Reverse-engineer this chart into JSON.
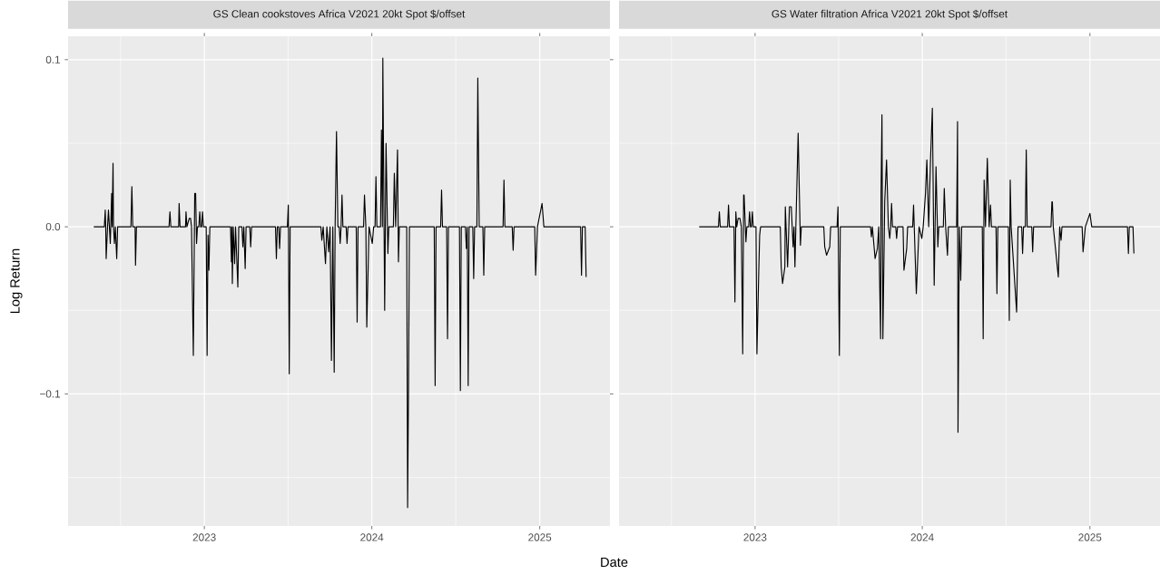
{
  "chart_data": [
    {
      "type": "line",
      "title": "GS Clean cookstoves Africa V2021 20kt Spot $/offset",
      "xlabel": "Date",
      "ylabel": "Log Return",
      "color": "#000000",
      "grid": true,
      "xlim": [
        "2022-03-10",
        "2025-06-03"
      ],
      "ylim": [
        -0.179,
        0.114
      ],
      "xticks": [
        "2023",
        "2024",
        "2025"
      ],
      "yticks": [
        {
          "value": -0.1,
          "label": "−0.1"
        },
        {
          "value": 0,
          "label": "0.0"
        },
        0.1
      ],
      "x": [
        "2022-05-05",
        "2022-05-28",
        "2022-05-30",
        "2022-05-31",
        "2022-06-01",
        "2022-06-04",
        "2022-06-06",
        "2022-06-08",
        "2022-06-10",
        "2022-06-11",
        "2022-06-13",
        "2022-06-14",
        "2022-06-16",
        "2022-06-17",
        "2022-06-19",
        "2022-06-21",
        "2022-06-24",
        "2022-06-26",
        "2022-07-25",
        "2022-07-27",
        "2022-07-29",
        "2022-08-03",
        "2022-08-04",
        "2022-08-06",
        "2022-10-16",
        "2022-10-18",
        "2022-10-20",
        "2022-11-06",
        "2022-11-07",
        "2022-11-09",
        "2022-11-21",
        "2022-11-22",
        "2022-11-24",
        "2022-11-29",
        "2022-12-02",
        "2022-12-04",
        "2022-12-08",
        "2022-12-11",
        "2022-12-13",
        "2022-12-15",
        "2022-12-17",
        "2022-12-20",
        "2022-12-22",
        "2022-12-24",
        "2022-12-26",
        "2022-12-28",
        "2022-12-30",
        "2023-01-05",
        "2023-01-07",
        "2023-01-09",
        "2023-01-11",
        "2023-01-13",
        "2023-02-27",
        "2023-03-01",
        "2023-03-02",
        "2023-03-03",
        "2023-03-05",
        "2023-03-08",
        "2023-03-10",
        "2023-03-15",
        "2023-03-17",
        "2023-03-24",
        "2023-03-26",
        "2023-03-28",
        "2023-03-31",
        "2023-04-02",
        "2023-04-10",
        "2023-04-12",
        "2023-04-14",
        "2023-06-05",
        "2023-06-07",
        "2023-06-09",
        "2023-06-12",
        "2023-06-14",
        "2023-06-16",
        "2023-07-01",
        "2023-07-03",
        "2023-07-05",
        "2023-07-07",
        "2023-09-12",
        "2023-09-14",
        "2023-09-17",
        "2023-09-22",
        "2023-09-25",
        "2023-09-29",
        "2023-10-02",
        "2023-10-05",
        "2023-10-08",
        "2023-10-11",
        "2023-10-13",
        "2023-10-16",
        "2023-10-19",
        "2023-10-22",
        "2023-10-24",
        "2023-10-26",
        "2023-10-28",
        "2023-10-30",
        "2023-11-06",
        "2023-11-08",
        "2023-11-10",
        "2023-11-28",
        "2023-11-30",
        "2023-12-02",
        "2023-12-14",
        "2023-12-16",
        "2023-12-19",
        "2023-12-21",
        "2023-12-26",
        "2024-01-02",
        "2024-01-05",
        "2024-01-08",
        "2024-01-10",
        "2024-01-12",
        "2024-01-20",
        "2024-01-22",
        "2024-01-24",
        "2024-01-25",
        "2024-01-29",
        "2024-02-01",
        "2024-02-05",
        "2024-02-07",
        "2024-02-17",
        "2024-02-19",
        "2024-02-22",
        "2024-02-26",
        "2024-02-28",
        "2024-03-01",
        "2024-03-17",
        "2024-03-19",
        "2024-03-21",
        "2024-03-23",
        "2024-05-16",
        "2024-05-18",
        "2024-05-20",
        "2024-05-30",
        "2024-06-01",
        "2024-06-03",
        "2024-06-12",
        "2024-06-14",
        "2024-06-16",
        "2024-07-10",
        "2024-07-12",
        "2024-07-14",
        "2024-07-23",
        "2024-07-25",
        "2024-07-27",
        "2024-07-29",
        "2024-07-31",
        "2024-08-08",
        "2024-08-10",
        "2024-08-12",
        "2024-08-17",
        "2024-08-19",
        "2024-08-22",
        "2024-08-30",
        "2024-09-01",
        "2024-09-03",
        "2024-10-13",
        "2024-10-15",
        "2024-10-17",
        "2024-11-02",
        "2024-11-04",
        "2024-11-06",
        "2024-12-21",
        "2024-12-23",
        "2024-12-27",
        "2025-01-06",
        "2025-01-10",
        "2025-03-31",
        "2025-04-02",
        "2025-04-04",
        "2025-04-10",
        "2025-04-12"
      ],
      "values": [
        0,
        0,
        0.01,
        0,
        -0.019,
        0,
        0.01,
        0,
        -0.01,
        0,
        0.02,
        0,
        0.038,
        0,
        -0.01,
        0,
        -0.019,
        0,
        0,
        0.024,
        0,
        0,
        -0.023,
        0,
        0,
        0.009,
        0,
        0,
        0.014,
        0,
        0,
        0.009,
        0,
        0.005,
        0.005,
        0,
        -0.077,
        0.02,
        0.02,
        -0.01,
        0,
        0,
        0.009,
        0,
        0,
        0.009,
        0,
        0,
        -0.077,
        -0.005,
        -0.026,
        0,
        0,
        -0.021,
        0,
        -0.034,
        0,
        -0.022,
        0,
        -0.036,
        0,
        0,
        -0.012,
        0,
        -0.025,
        0,
        0,
        -0.012,
        0,
        0,
        -0.019,
        0,
        0,
        -0.013,
        0,
        0,
        0.013,
        -0.088,
        0,
        0,
        -0.008,
        0,
        -0.022,
        0,
        -0.015,
        0,
        -0.08,
        0,
        -0.087,
        0,
        0.057,
        0,
        0,
        -0.01,
        0,
        0.019,
        0,
        0,
        -0.01,
        0,
        0,
        -0.057,
        0,
        0,
        0.019,
        0,
        -0.06,
        0,
        -0.01,
        0,
        0,
        0.03,
        0,
        0,
        0.058,
        0,
        0.101,
        -0.05,
        0.05,
        -0.016,
        0,
        0,
        0.032,
        0,
        0.046,
        -0.021,
        0,
        0,
        -0.168,
        -0.096,
        0,
        0,
        -0.095,
        0,
        0,
        0.022,
        0,
        0,
        -0.067,
        0,
        0,
        -0.098,
        0,
        0,
        -0.013,
        0,
        -0.095,
        0,
        0,
        -0.031,
        0,
        0,
        0.089,
        0,
        0,
        -0.029,
        0,
        0,
        0.028,
        0,
        0,
        -0.014,
        0,
        0,
        -0.029,
        0,
        0.014,
        0,
        0,
        -0.029,
        0,
        0,
        -0.03
      ]
    },
    {
      "type": "line",
      "title": "GS Water filtration Africa V2021 20kt Spot $/offset",
      "color": "#000000",
      "grid": true,
      "tick_labels": "x",
      "xlim": [
        "2022-03-10",
        "2025-06-03"
      ],
      "ylim": [
        -0.179,
        0.114
      ],
      "xticks": [
        "2023",
        "2024",
        "2025"
      ],
      "yticks": [
        {
          "value": -0.1,
          "label": null
        },
        {
          "value": 0,
          "label": null
        },
        {
          "value": 0.1,
          "label": null
        }
      ],
      "x": [
        "2022-09-01",
        "2022-10-13",
        "2022-10-15",
        "2022-10-17",
        "2022-11-02",
        "2022-11-04",
        "2022-11-06",
        "2022-11-16",
        "2022-11-18",
        "2022-11-20",
        "2022-11-22",
        "2022-11-25",
        "2022-11-29",
        "2022-12-02",
        "2022-12-05",
        "2022-12-07",
        "2022-12-08",
        "2022-12-12",
        "2022-12-14",
        "2022-12-18",
        "2022-12-20",
        "2022-12-22",
        "2022-12-24",
        "2022-12-26",
        "2022-12-28",
        "2023-01-03",
        "2023-01-05",
        "2023-01-09",
        "2023-01-11",
        "2023-01-13",
        "2023-02-25",
        "2023-02-27",
        "2023-03-02",
        "2023-03-07",
        "2023-03-08",
        "2023-03-13",
        "2023-03-17",
        "2023-03-21",
        "2023-03-25",
        "2023-03-27",
        "2023-03-29",
        "2023-03-31",
        "2023-04-05",
        "2023-04-10",
        "2023-04-12",
        "2023-05-31",
        "2023-06-02",
        "2023-06-06",
        "2023-06-13",
        "2023-06-15",
        "2023-06-29",
        "2023-07-01",
        "2023-07-04",
        "2023-07-06",
        "2023-09-10",
        "2023-09-12",
        "2023-09-14",
        "2023-09-20",
        "2023-09-25",
        "2023-09-28",
        "2023-10-02",
        "2023-10-03",
        "2023-10-05",
        "2023-10-07",
        "2023-10-11",
        "2023-10-15",
        "2023-10-17",
        "2023-10-19",
        "2023-10-22",
        "2023-10-24",
        "2023-10-26",
        "2023-10-28",
        "2023-11-04",
        "2023-11-06",
        "2023-11-08",
        "2023-11-20",
        "2023-11-22",
        "2023-11-28",
        "2023-11-30",
        "2023-12-11",
        "2023-12-13",
        "2023-12-19",
        "2023-12-25",
        "2023-12-31",
        "2024-01-03",
        "2024-01-08",
        "2024-01-11",
        "2024-01-15",
        "2024-01-19",
        "2024-01-23",
        "2024-01-27",
        "2024-01-31",
        "2024-02-04",
        "2024-02-06",
        "2024-02-16",
        "2024-02-18",
        "2024-02-21",
        "2024-02-25",
        "2024-02-27",
        "2024-03-16",
        "2024-03-18",
        "2024-03-19",
        "2024-03-22",
        "2024-03-25",
        "2024-03-27",
        "2024-05-11",
        "2024-05-13",
        "2024-05-15",
        "2024-05-18",
        "2024-05-22",
        "2024-05-26",
        "2024-05-29",
        "2024-05-31",
        "2024-06-10",
        "2024-06-12",
        "2024-06-14",
        "2024-07-07",
        "2024-07-09",
        "2024-07-11",
        "2024-07-13",
        "2024-07-25",
        "2024-07-28",
        "2024-08-05",
        "2024-08-07",
        "2024-08-09",
        "2024-08-13",
        "2024-08-15",
        "2024-08-17",
        "2024-08-27",
        "2024-08-29",
        "2024-08-31",
        "2024-10-08",
        "2024-10-10",
        "2024-10-11",
        "2024-10-13",
        "2024-10-24",
        "2024-10-27",
        "2024-10-30",
        "2024-11-01",
        "2024-12-15",
        "2024-12-17",
        "2024-12-22",
        "2025-01-01",
        "2025-01-05",
        "2025-03-24",
        "2025-03-26",
        "2025-03-28",
        "2025-04-05",
        "2025-04-07"
      ],
      "values": [
        0,
        0,
        0.009,
        0,
        0,
        0.013,
        0,
        0,
        -0.045,
        0.009,
        0,
        0.005,
        0.005,
        0,
        -0.076,
        0.019,
        0.019,
        -0.009,
        0,
        0,
        0.009,
        0,
        0,
        0.009,
        0,
        0,
        -0.076,
        -0.027,
        -0.005,
        0,
        0,
        -0.024,
        -0.034,
        -0.024,
        0.012,
        -0.024,
        0.012,
        0.012,
        -0.012,
        0,
        -0.024,
        0,
        0.056,
        -0.011,
        0,
        0,
        -0.012,
        -0.017,
        -0.012,
        0,
        0,
        0.012,
        -0.077,
        0,
        0,
        -0.006,
        0,
        -0.019,
        -0.013,
        0,
        -0.067,
        0.02,
        0.067,
        -0.067,
        0.015,
        0.04,
        0.02,
        0,
        -0.007,
        0,
        0.014,
        0,
        0,
        -0.007,
        0,
        0,
        -0.026,
        -0.013,
        0,
        0,
        0.013,
        -0.04,
        0,
        -0.007,
        0,
        0.02,
        0.04,
        0,
        0.04,
        0.071,
        -0.035,
        0.036,
        -0.012,
        0,
        0,
        0.023,
        0,
        -0.017,
        0,
        0,
        0.063,
        -0.123,
        0,
        -0.032,
        0,
        0,
        -0.067,
        0.028,
        0,
        0.041,
        0,
        0.013,
        0,
        0,
        -0.04,
        0,
        0,
        -0.056,
        0.028,
        0,
        -0.051,
        0,
        0,
        -0.016,
        0,
        0,
        0.046,
        0,
        0,
        -0.015,
        0,
        0,
        0.015,
        0.015,
        0,
        -0.03,
        0,
        -0.008,
        0,
        0,
        -0.015,
        0,
        0.008,
        0,
        0,
        -0.016,
        0,
        0,
        -0.016
      ]
    }
  ]
}
